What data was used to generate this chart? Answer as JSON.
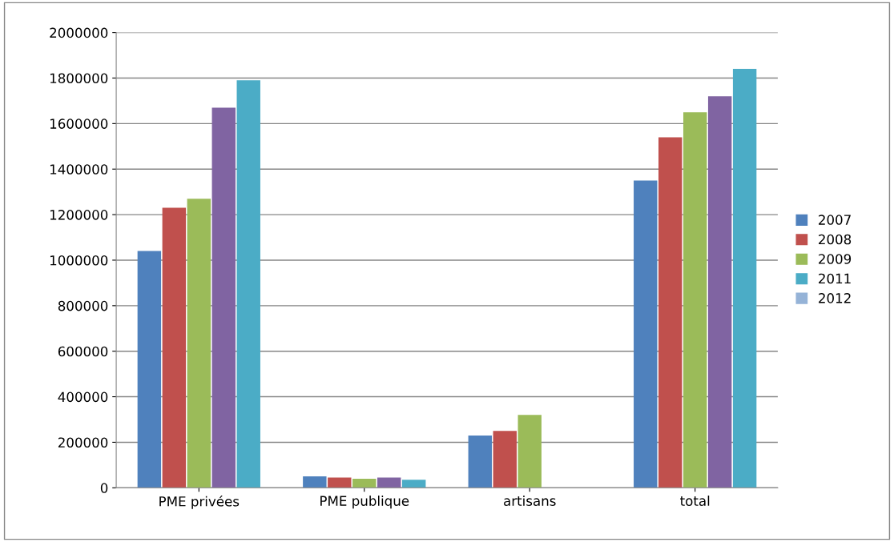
{
  "chart_data": {
    "type": "bar",
    "categories": [
      "PME privées",
      "PME publique",
      "artisans",
      "total"
    ],
    "series": [
      {
        "name": "2007",
        "color": "#4f81bd",
        "values": [
          1040000,
          50000,
          230000,
          1350000
        ]
      },
      {
        "name": "2008",
        "color": "#c0504d",
        "values": [
          1230000,
          45000,
          250000,
          1540000
        ]
      },
      {
        "name": "2009",
        "color": "#9bbb59",
        "values": [
          1270000,
          40000,
          320000,
          1650000
        ]
      },
      {
        "color": "#8064a2",
        "values": [
          1670000,
          45000,
          null,
          1720000
        ]
      },
      {
        "name": "2011",
        "color": "#4bacc6",
        "values": [
          1790000,
          35000,
          null,
          1840000
        ]
      },
      {
        "name": "2012",
        "color": "#95b3d7",
        "values": [
          null,
          null,
          null,
          null
        ]
      }
    ],
    "ylim": [
      0,
      2000000
    ],
    "yticks": [
      0,
      200000,
      400000,
      600000,
      800000,
      1000000,
      1200000,
      1400000,
      1600000,
      1800000,
      2000000
    ],
    "grid": "y",
    "legend": "right"
  }
}
